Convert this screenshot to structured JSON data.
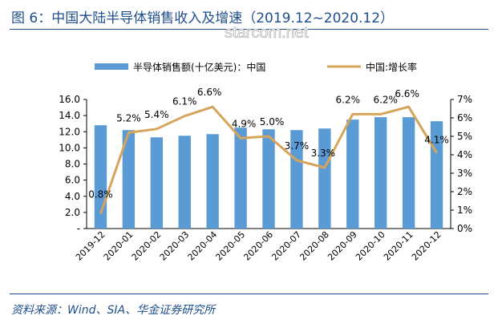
{
  "title": "图 6：中国大陆半导体销售收入及增速（2019.12~2020.12）",
  "watermark": "starcom.net",
  "source": "资料来源：Wind、SIA、华金证券研究所",
  "colors": {
    "bar": "#5b9bd5",
    "line": "#d6a45a",
    "title": "#1f4e8c"
  },
  "chart_data": {
    "type": "bar",
    "categories": [
      "2019-12",
      "2020-01",
      "2020-02",
      "2020-03",
      "2020-04",
      "2020-05",
      "2020-06",
      "2020-07",
      "2020-08",
      "2020-09",
      "2020-10",
      "2020-11",
      "2020-12"
    ],
    "series": [
      {
        "name": "半导体销售额(十亿美元)：中国",
        "type": "bar",
        "axis": "left",
        "values": [
          12.8,
          12.2,
          11.3,
          11.5,
          11.7,
          12.5,
          12.3,
          12.2,
          12.4,
          13.5,
          13.8,
          13.8,
          13.3
        ]
      },
      {
        "name": "中国:增长率",
        "type": "line",
        "axis": "right",
        "values": [
          0.8,
          5.2,
          5.4,
          6.1,
          6.6,
          4.9,
          5.0,
          3.7,
          3.3,
          6.2,
          6.2,
          6.6,
          4.1
        ]
      }
    ],
    "data_labels": [
      "0.8%",
      "5.2%",
      "5.4%",
      "6.1%",
      "6.6%",
      "4.9%",
      "5.0%",
      "3.7%",
      "3.3%",
      "6.2%",
      "6.2%",
      "6.6%",
      "4.1%"
    ],
    "left_axis": {
      "min": 0,
      "max": 16,
      "ticks": [
        "-",
        "2.0",
        "4.0",
        "6.0",
        "8.0",
        "10.0",
        "12.0",
        "14.0",
        "16.0"
      ]
    },
    "right_axis": {
      "min": 0,
      "max": 7,
      "ticks": [
        "0%",
        "1%",
        "2%",
        "3%",
        "4%",
        "5%",
        "6%",
        "7%"
      ]
    },
    "legend_placement": "top",
    "grid": false
  }
}
